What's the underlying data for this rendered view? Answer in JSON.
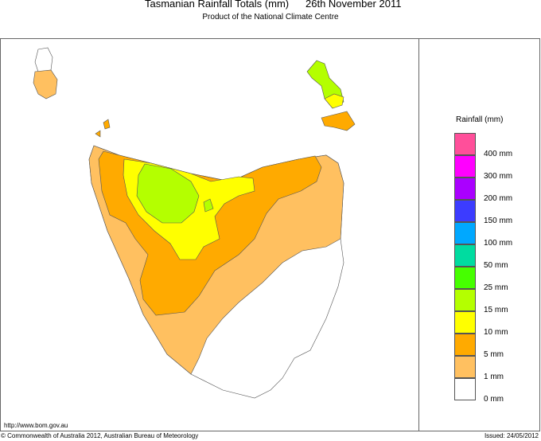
{
  "header": {
    "title": "Tasmanian Rainfall Totals (mm)",
    "date": "26th November 2011",
    "subtitle": "Product of the National Climate Centre"
  },
  "legend": {
    "title": "Rainfall (mm)",
    "colors": [
      "#ff4f9a",
      "#ff00ff",
      "#aa00ff",
      "#3c3cff",
      "#00a8ff",
      "#00dca0",
      "#46ff00",
      "#b4ff00",
      "#ffff00",
      "#ffaa00",
      "#ffc060",
      "#ffffff"
    ],
    "labels": [
      "400 mm",
      "300 mm",
      "200 mm",
      "150 mm",
      "100 mm",
      "50 mm",
      "25 mm",
      "15 mm",
      "10 mm",
      "5 mm",
      "1 mm",
      "0 mm"
    ]
  },
  "footer": {
    "url": "http://www.bom.gov.au",
    "copyright": "© Commonwealth of Australia 2012, Australian Bureau of Meteorology",
    "issued": "Issued: 24/05/2012"
  }
}
